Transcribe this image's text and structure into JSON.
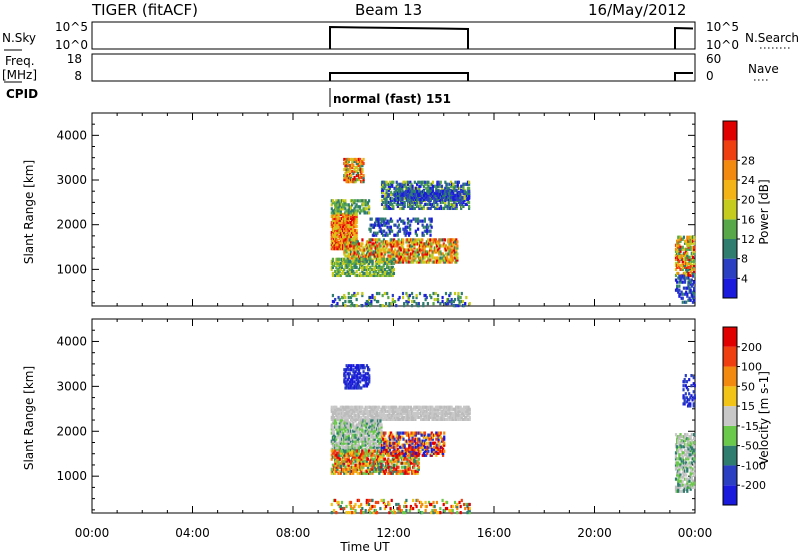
{
  "header": {
    "title_left": "TIGER (fitACF)",
    "title_center": "Beam 13",
    "title_right": "16/May/2012"
  },
  "strips": {
    "nsky_label": "N.Sky",
    "nsky_ticks": [
      "10^5",
      "10^0"
    ],
    "nsearch_label": "N.Search",
    "nsearch_ticks": [
      "10^5",
      "10^0"
    ],
    "freq_label_1": "Freq.",
    "freq_label_2": "[MHz]",
    "freq_ticks": [
      "18",
      "8"
    ],
    "nave_label": "Nave",
    "nave_ticks": [
      "60",
      "0"
    ],
    "cpid_label": "CPID",
    "cpid_text": "normal (fast) 151"
  },
  "chart_data": [
    {
      "type": "heatmap",
      "name": "power-panel",
      "ylabel": "Slant Range [km]",
      "xlabel": "",
      "xlim": [
        0,
        24
      ],
      "ylim": [
        180,
        4500
      ],
      "yticks": [
        1000,
        2000,
        3000,
        4000
      ],
      "colorbar": {
        "label": "Power [dB]",
        "ticks": [
          "4",
          "8",
          "12",
          "16",
          "20",
          "24",
          "28"
        ],
        "colors": [
          "#1a1adc",
          "#2a3fc2",
          "#2f7d6e",
          "#58a84a",
          "#c6cc1e",
          "#f3b418",
          "#f38a10",
          "#ef3f10",
          "#e00000"
        ]
      }
    },
    {
      "type": "heatmap",
      "name": "velocity-panel",
      "ylabel": "Slant Range [km]",
      "xlabel": "Time UT",
      "xlim": [
        0,
        24
      ],
      "ylim": [
        180,
        4500
      ],
      "yticks": [
        1000,
        2000,
        3000,
        4000
      ],
      "xticks": [
        "00:00",
        "04:00",
        "08:00",
        "12:00",
        "16:00",
        "20:00",
        "00:00"
      ],
      "colorbar": {
        "label": "Velocity [m s-1]",
        "ticks": [
          "200",
          "100",
          "50",
          "15",
          "-15",
          "-50",
          "-100",
          "-200"
        ],
        "colors": [
          "#1a1adc",
          "#2a3fc2",
          "#2f7d6e",
          "#6ac84a",
          "#c8c8c8",
          "#f3c418",
          "#f38a10",
          "#ef3f10",
          "#e00000"
        ]
      }
    }
  ]
}
